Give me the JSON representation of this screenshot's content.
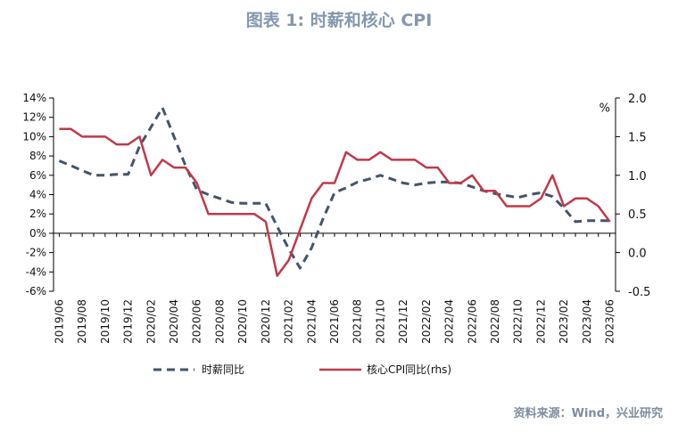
{
  "chart_data": {
    "type": "line",
    "title": "图表 1:  时薪和核心 CPI",
    "source": "资料来源：Wind，兴业研究",
    "y_left": {
      "ylim": [
        -6,
        14
      ],
      "ticks": [
        -6,
        -4,
        -2,
        0,
        2,
        4,
        6,
        8,
        10,
        12,
        14
      ],
      "tick_labels": [
        "-6%",
        "-4%",
        "-2%",
        "0%",
        "2%",
        "4%",
        "6%",
        "8%",
        "10%",
        "12%",
        "14%"
      ]
    },
    "y_right": {
      "ylim": [
        -0.5,
        2.0
      ],
      "ticks": [
        -0.5,
        0.0,
        0.5,
        1.0,
        1.5,
        2.0
      ],
      "tick_labels": [
        "-0.5",
        "0.0",
        "0.5",
        "1.0",
        "1.5",
        "2.0"
      ],
      "unit": "%"
    },
    "x": [
      "2019/06",
      "2019/07",
      "2019/08",
      "2019/09",
      "2019/10",
      "2019/11",
      "2019/12",
      "2020/01",
      "2020/02",
      "2020/03",
      "2020/04",
      "2020/05",
      "2020/06",
      "2020/07",
      "2020/08",
      "2020/09",
      "2020/10",
      "2020/11",
      "2020/12",
      "2021/01",
      "2021/02",
      "2021/03",
      "2021/04",
      "2021/05",
      "2021/06",
      "2021/07",
      "2021/08",
      "2021/09",
      "2021/10",
      "2021/11",
      "2021/12",
      "2022/01",
      "2022/02",
      "2022/03",
      "2022/04",
      "2022/05",
      "2022/06",
      "2022/07",
      "2022/08",
      "2022/09",
      "2022/10",
      "2022/11",
      "2022/12",
      "2023/01",
      "2023/02",
      "2023/03",
      "2023/04",
      "2023/05",
      "2023/06"
    ],
    "x_tick_labels": [
      "2019/06",
      "2019/08",
      "2019/10",
      "2019/12",
      "2020/02",
      "2020/04",
      "2020/06",
      "2020/08",
      "2020/10",
      "2020/12",
      "2021/02",
      "2021/04",
      "2021/06",
      "2021/08",
      "2021/10",
      "2021/12",
      "2022/02",
      "2022/04",
      "2022/06",
      "2022/08",
      "2022/10",
      "2022/12",
      "2023/02",
      "2023/04",
      "2023/06"
    ],
    "series": [
      {
        "name": "时薪同比",
        "axis": "left",
        "style": "dashed",
        "color": "#44546a",
        "values": [
          7.5,
          7.0,
          6.5,
          6.0,
          6.0,
          6.1,
          6.1,
          9.0,
          11.0,
          13.0,
          10.0,
          7.0,
          4.5,
          4.0,
          3.6,
          3.2,
          3.1,
          3.1,
          3.1,
          0.7,
          -1.6,
          -3.6,
          -1.5,
          1.5,
          4.2,
          4.7,
          5.3,
          5.6,
          6.0,
          5.6,
          5.2,
          5.0,
          5.2,
          5.3,
          5.3,
          5.2,
          4.8,
          4.4,
          4.1,
          3.9,
          3.7,
          4.0,
          4.2,
          3.8,
          2.6,
          1.2,
          1.3,
          1.3,
          1.3
        ]
      },
      {
        "name": "核心CPI同比(rhs)",
        "axis": "right",
        "style": "solid",
        "color": "#c0394a",
        "values": [
          1.6,
          1.6,
          1.5,
          1.5,
          1.5,
          1.4,
          1.4,
          1.5,
          1.0,
          1.2,
          1.1,
          1.1,
          0.9,
          0.5,
          0.5,
          0.5,
          0.5,
          0.5,
          0.4,
          -0.3,
          -0.1,
          0.3,
          0.7,
          0.9,
          0.9,
          1.3,
          1.2,
          1.2,
          1.3,
          1.2,
          1.2,
          1.2,
          1.1,
          1.1,
          0.9,
          0.9,
          1.0,
          0.8,
          0.8,
          0.6,
          0.6,
          0.6,
          0.7,
          1.0,
          0.6,
          0.7,
          0.7,
          0.6,
          0.4
        ]
      }
    ],
    "legend": "bottom"
  }
}
